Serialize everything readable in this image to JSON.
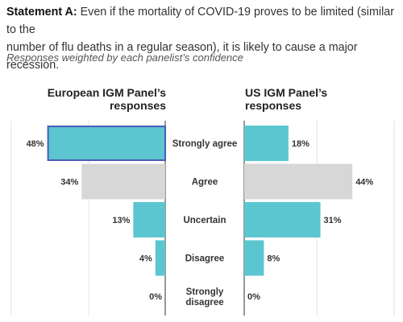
{
  "statement": {
    "prefix": "Statement A:",
    "line1": " Even if the mortality of COVID-19 proves to be limited (similar to the",
    "line2": "number of flu deaths in a regular season), it is likely to cause a major recession."
  },
  "subtitle": "Responses weighted by each panelist’s confidence",
  "colors": {
    "teal": "#5bc6d0",
    "gray": "#d7d7d7",
    "highlight_border": "#4b5cb8",
    "axis": "#555555",
    "grid": "#e3e3e3"
  },
  "chart_data": {
    "type": "bar",
    "orientation": "horizontal-diverging",
    "categories": [
      "Strongly agree",
      "Agree",
      "Uncertain",
      "Disagree",
      "Strongly disagree"
    ],
    "series": [
      {
        "name": "European IGM Panel's responses",
        "values": [
          48,
          34,
          13,
          4,
          0
        ],
        "labels": [
          "48%",
          "34%",
          "13%",
          "4%",
          "0%"
        ]
      },
      {
        "name": "US IGM Panel's responses",
        "values": [
          18,
          44,
          31,
          8,
          0
        ],
        "labels": [
          "18%",
          "44%",
          "31%",
          "8%",
          "0%"
        ]
      }
    ],
    "highlight": {
      "series": 0,
      "category": 0
    },
    "gray_category": "Agree",
    "unit": "%",
    "grid": true
  }
}
